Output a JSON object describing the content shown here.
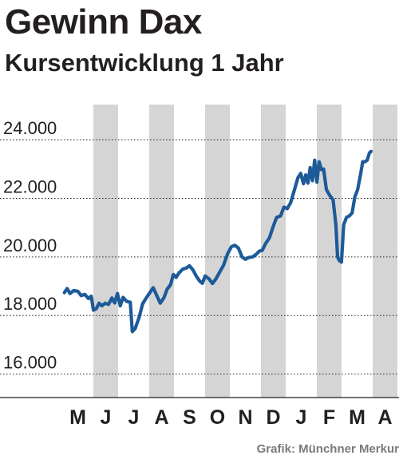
{
  "title": "Gewinn Dax",
  "subtitle": "Kursentwicklung 1 Jahr",
  "source": "Grafik: Münchner Merkur",
  "colors": {
    "line": "#1d5a98",
    "band": "#d5d5d5",
    "grid": "#231f20",
    "text": "#231f20",
    "source": "#7a7a7a"
  },
  "chart_data": {
    "type": "line",
    "title": "Gewinn Dax",
    "subtitle": "Kursentwicklung 1 Jahr",
    "xlabel": "",
    "ylabel": "",
    "y_ticks": [
      {
        "value": 16000,
        "label": "16.000"
      },
      {
        "value": 18000,
        "label": "18.000"
      },
      {
        "value": 20000,
        "label": "20.000"
      },
      {
        "value": 22000,
        "label": "22.000"
      },
      {
        "value": 24000,
        "label": "24.000"
      }
    ],
    "ylim": [
      15200,
      25200
    ],
    "xlim": [
      0,
      12
    ],
    "months": [
      "M",
      "J",
      "J",
      "A",
      "S",
      "O",
      "N",
      "D",
      "J",
      "F",
      "M",
      "A"
    ],
    "shaded_months": [
      1,
      3,
      5,
      7,
      9,
      11
    ],
    "grid": true,
    "legend": "none",
    "series": [
      {
        "name": "",
        "points": [
          [
            0.02,
            18780
          ],
          [
            0.12,
            18920
          ],
          [
            0.22,
            18750
          ],
          [
            0.35,
            18850
          ],
          [
            0.5,
            18830
          ],
          [
            0.62,
            18680
          ],
          [
            0.75,
            18720
          ],
          [
            0.88,
            18580
          ],
          [
            0.98,
            18660
          ],
          [
            1.06,
            18180
          ],
          [
            1.16,
            18230
          ],
          [
            1.26,
            18420
          ],
          [
            1.36,
            18330
          ],
          [
            1.48,
            18420
          ],
          [
            1.6,
            18380
          ],
          [
            1.72,
            18600
          ],
          [
            1.82,
            18430
          ],
          [
            1.92,
            18750
          ],
          [
            2.02,
            18330
          ],
          [
            2.12,
            18620
          ],
          [
            2.25,
            18480
          ],
          [
            2.38,
            18450
          ],
          [
            2.45,
            17450
          ],
          [
            2.55,
            17550
          ],
          [
            2.7,
            17950
          ],
          [
            2.82,
            18400
          ],
          [
            2.95,
            18600
          ],
          [
            3.08,
            18780
          ],
          [
            3.2,
            18950
          ],
          [
            3.32,
            18700
          ],
          [
            3.45,
            18420
          ],
          [
            3.58,
            18600
          ],
          [
            3.7,
            18900
          ],
          [
            3.82,
            19050
          ],
          [
            3.92,
            19400
          ],
          [
            4.02,
            19300
          ],
          [
            4.12,
            19450
          ],
          [
            4.25,
            19580
          ],
          [
            4.38,
            19620
          ],
          [
            4.5,
            19700
          ],
          [
            4.62,
            19560
          ],
          [
            4.74,
            19350
          ],
          [
            4.86,
            19180
          ],
          [
            4.96,
            19100
          ],
          [
            5.06,
            19350
          ],
          [
            5.2,
            19250
          ],
          [
            5.32,
            19090
          ],
          [
            5.44,
            19240
          ],
          [
            5.58,
            19480
          ],
          [
            5.72,
            19720
          ],
          [
            5.86,
            20100
          ],
          [
            6.0,
            20350
          ],
          [
            6.12,
            20400
          ],
          [
            6.25,
            20300
          ],
          [
            6.38,
            20000
          ],
          [
            6.5,
            19920
          ],
          [
            6.62,
            19980
          ],
          [
            6.76,
            20000
          ],
          [
            6.9,
            20100
          ],
          [
            7.0,
            20200
          ],
          [
            7.1,
            20220
          ],
          [
            7.22,
            20450
          ],
          [
            7.36,
            20650
          ],
          [
            7.5,
            21050
          ],
          [
            7.62,
            21350
          ],
          [
            7.76,
            21400
          ],
          [
            7.88,
            21700
          ],
          [
            8.0,
            21650
          ],
          [
            8.12,
            21850
          ],
          [
            8.26,
            22300
          ],
          [
            8.38,
            22700
          ],
          [
            8.48,
            22850
          ],
          [
            8.58,
            22500
          ],
          [
            8.66,
            22800
          ],
          [
            8.74,
            22520
          ],
          [
            8.82,
            23050
          ],
          [
            8.9,
            22600
          ],
          [
            8.98,
            23300
          ],
          [
            9.06,
            22550
          ],
          [
            9.14,
            23250
          ],
          [
            9.22,
            22980
          ],
          [
            9.3,
            23000
          ],
          [
            9.4,
            22300
          ],
          [
            9.52,
            22100
          ],
          [
            9.64,
            21950
          ],
          [
            9.74,
            21100
          ],
          [
            9.8,
            20000
          ],
          [
            9.86,
            19880
          ],
          [
            9.94,
            19820
          ],
          [
            10.02,
            21100
          ],
          [
            10.12,
            21350
          ],
          [
            10.22,
            21400
          ],
          [
            10.32,
            21500
          ],
          [
            10.42,
            22050
          ],
          [
            10.52,
            22300
          ],
          [
            10.62,
            22800
          ],
          [
            10.7,
            23250
          ],
          [
            10.78,
            23250
          ],
          [
            10.86,
            23300
          ],
          [
            10.94,
            23550
          ],
          [
            11.0,
            23600
          ]
        ]
      }
    ]
  }
}
